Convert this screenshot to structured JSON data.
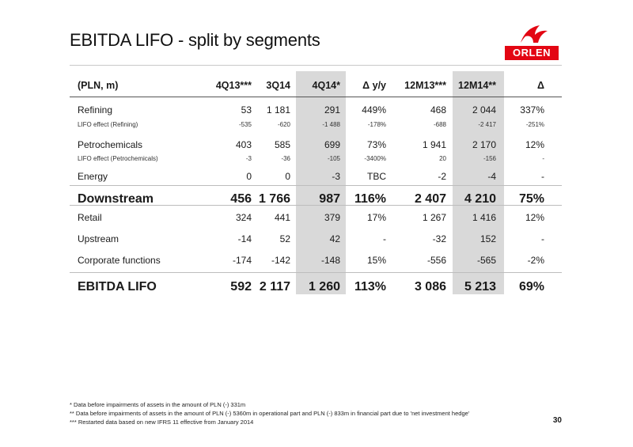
{
  "title": "EBITDA LIFO - split by segments",
  "logo": {
    "text": "ORLEN",
    "mark": "orlen-eagle-icon",
    "color": "#e30613"
  },
  "table": {
    "headers": [
      "(PLN, m)",
      "4Q13***",
      "3Q14",
      "4Q14*",
      "Δ y/y",
      "12M13***",
      "12M14**",
      "Δ"
    ],
    "rows": [
      {
        "name": "refining",
        "style": "main",
        "cells": [
          "Refining",
          "53",
          "1 181",
          "291",
          "449%",
          "468",
          "2 044",
          "337%"
        ]
      },
      {
        "name": "lifo-refining",
        "style": "sub",
        "cells": [
          "LIFO effect (Refining)",
          "-535",
          "-620",
          "-1 488",
          "-178%",
          "-688",
          "-2 417",
          "-251%"
        ]
      },
      {
        "name": "petrochemicals",
        "style": "main",
        "cells": [
          "Petrochemicals",
          "403",
          "585",
          "699",
          "73%",
          "1 941",
          "2 170",
          "12%"
        ]
      },
      {
        "name": "lifo-petrochemicals",
        "style": "sub",
        "cells": [
          "LIFO effect (Petrochemicals)",
          "-3",
          "-36",
          "-105",
          "-3400%",
          "20",
          "-156",
          "-"
        ]
      },
      {
        "name": "energy",
        "style": "main",
        "cells": [
          "Energy",
          "0",
          "0",
          "-3",
          "TBC",
          "-2",
          "-4",
          "-"
        ]
      },
      {
        "name": "downstream",
        "style": "bold",
        "cells": [
          "Downstream",
          "456",
          "1 766",
          "987",
          "116%",
          "2 407",
          "4 210",
          "75%"
        ]
      },
      {
        "name": "retail",
        "style": "main",
        "cells": [
          "Retail",
          "324",
          "441",
          "379",
          "17%",
          "1 267",
          "1 416",
          "12%"
        ]
      },
      {
        "name": "upstream",
        "style": "main",
        "cells": [
          "Upstream",
          "-14",
          "52",
          "42",
          "-",
          "-32",
          "152",
          "-"
        ]
      },
      {
        "name": "corporate-functions",
        "style": "main",
        "cells": [
          "Corporate functions",
          "-174",
          "-142",
          "-148",
          "15%",
          "-556",
          "-565",
          "-2%"
        ]
      },
      {
        "name": "ebitda-lifo",
        "style": "bold",
        "cells": [
          "EBITDA LIFO",
          "592",
          "2 117",
          "1 260",
          "113%",
          "3 086",
          "5 213",
          "69%"
        ]
      }
    ],
    "shade_color": "#d9d9d9"
  },
  "footnotes": [
    "*    Data before impairments of assets in the amount of PLN (-) 331m",
    "**   Data before impairments of assets in the amount of PLN (-) 5360m in operational part and  PLN (-) 833m in financial part due to 'net investment hedge'",
    "***  Restarted data based on new IFRS 11 effective from January 2014"
  ],
  "page_number": "30"
}
